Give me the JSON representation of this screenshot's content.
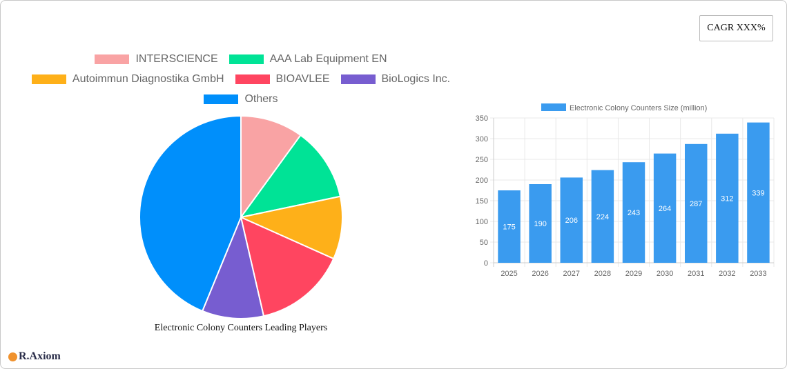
{
  "cagr_label": "CAGR XXX%",
  "logo_text": "R.Axiom",
  "chart_data": [
    {
      "type": "pie",
      "title": "Electronic Colony Counters Leading Players",
      "legend_position": "top",
      "series": [
        {
          "name": "INTERSCIENCE",
          "value": 10,
          "color": "#f9a3a4"
        },
        {
          "name": "AAA Lab Equipment EN",
          "value": 11.7,
          "color": "#00e396"
        },
        {
          "name": "Autoimmun Diagnostika GmbH",
          "value": 10,
          "color": "#feb019"
        },
        {
          "name": "BIOAVLEE",
          "value": 14.7,
          "color": "#ff4560"
        },
        {
          "name": "BioLogics Inc.",
          "value": 9.8,
          "color": "#775dd0"
        },
        {
          "name": "Others",
          "value": 43.8,
          "color": "#008ffb"
        }
      ]
    },
    {
      "type": "bar",
      "legend_position": "top",
      "series_name": "Electronic Colony Counters Size (million)",
      "color": "#3a9bef",
      "categories": [
        "2025",
        "2026",
        "2027",
        "2028",
        "2029",
        "2030",
        "2031",
        "2032",
        "2033"
      ],
      "values": [
        175,
        190,
        206,
        224,
        243,
        264,
        287,
        312,
        339
      ],
      "ylim": [
        0,
        350
      ],
      "yticks": [
        0,
        50,
        100,
        150,
        200,
        250,
        300,
        350
      ],
      "grid": true
    }
  ]
}
